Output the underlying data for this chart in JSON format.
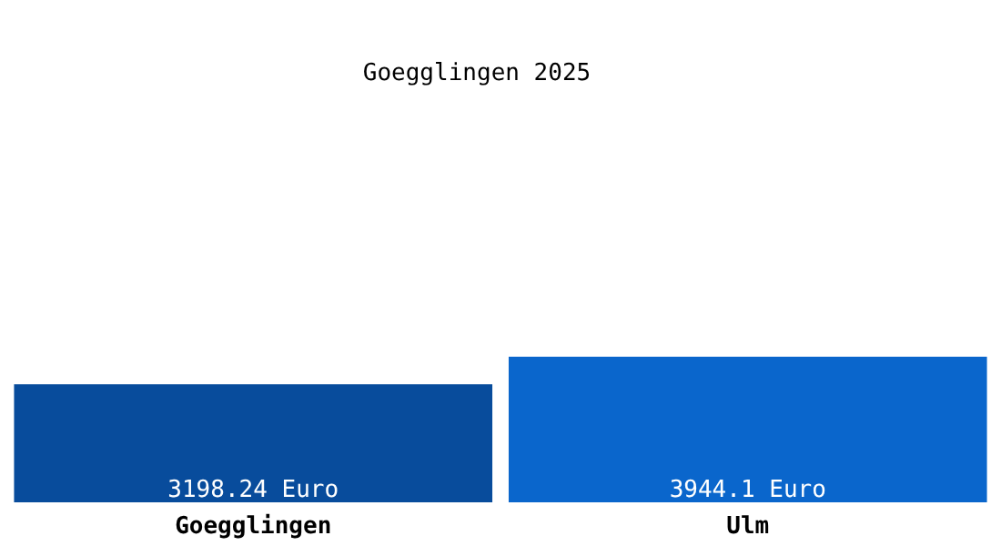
{
  "chart_data": {
    "type": "bar",
    "title": "Goegglingen 2025",
    "categories": [
      "Goegglingen",
      "Ulm"
    ],
    "values": [
      3198.24,
      3944.1
    ],
    "colors": [
      "#084c9c",
      "#0a66cc"
    ],
    "value_labels": [
      "3198.24 Euro",
      "3944.1 Euro"
    ]
  }
}
